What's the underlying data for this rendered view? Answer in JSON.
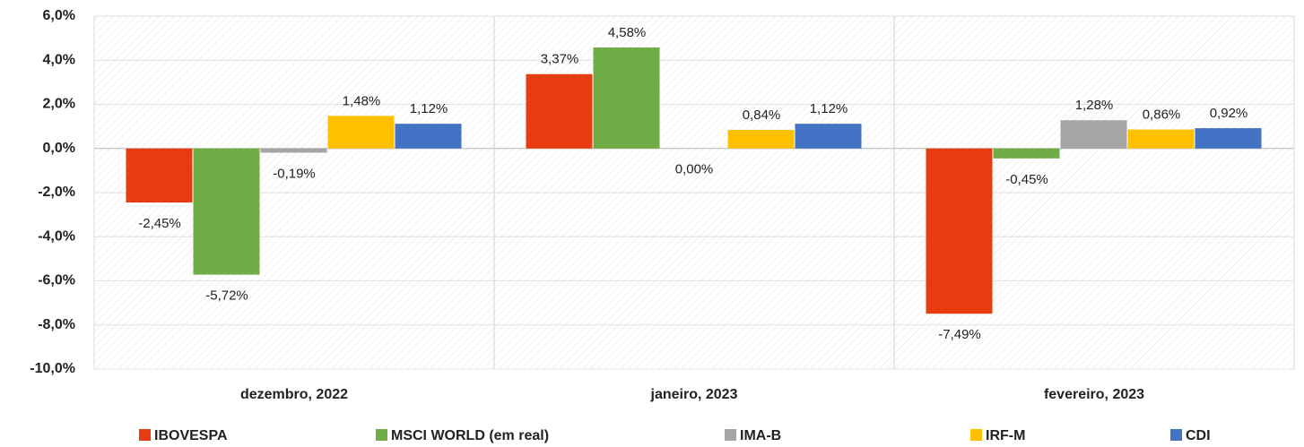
{
  "chart_data": {
    "type": "bar",
    "categories": [
      "dezembro, 2022",
      "janeiro, 2023",
      "fevereiro, 2023"
    ],
    "series": [
      {
        "name": "IBOVESPA",
        "color": "#e63c10",
        "values": [
          -2.45,
          3.37,
          -7.49
        ],
        "value_labels": [
          "-2,45%",
          "3,37%",
          "-7,49%"
        ]
      },
      {
        "name": "MSCI WORLD (em real)",
        "color": "#70ad47",
        "values": [
          -5.72,
          4.58,
          -0.45
        ],
        "value_labels": [
          "-5,72%",
          "4,58%",
          "-0,45%"
        ]
      },
      {
        "name": "IMA-B",
        "color": "#a5a5a5",
        "values": [
          -0.19,
          0.0,
          1.28
        ],
        "value_labels": [
          "-0,19%",
          "0,00%",
          "1,28%"
        ]
      },
      {
        "name": "IRF-M",
        "color": "#ffc000",
        "values": [
          1.48,
          0.84,
          0.86
        ],
        "value_labels": [
          "1,48%",
          "0,84%",
          "0,86%"
        ]
      },
      {
        "name": "CDI",
        "color": "#4472c4",
        "values": [
          1.12,
          1.12,
          0.92
        ],
        "value_labels": [
          "1,12%",
          "1,12%",
          "0,92%"
        ]
      }
    ],
    "ylim": [
      -10,
      6
    ],
    "yticks": [
      {
        "value": -10,
        "label": "-10,0%"
      },
      {
        "value": -8,
        "label": "-8,0%"
      },
      {
        "value": -6,
        "label": "-6,0%"
      },
      {
        "value": -4,
        "label": "-4,0%"
      },
      {
        "value": -2,
        "label": "-2,0%"
      },
      {
        "value": 0,
        "label": "0,0%"
      },
      {
        "value": 2,
        "label": "2,0%"
      },
      {
        "value": 4,
        "label": "4,0%"
      },
      {
        "value": 6,
        "label": "6,0%"
      }
    ],
    "legend": "bottom"
  }
}
